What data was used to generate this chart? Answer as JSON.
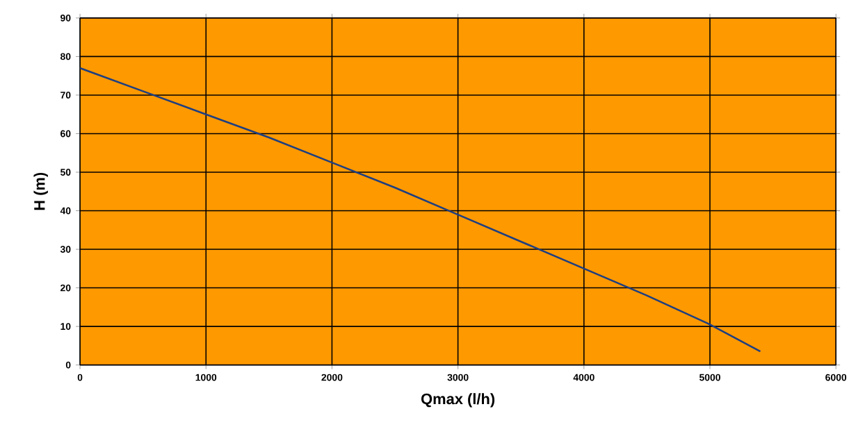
{
  "chart_data": {
    "type": "line",
    "xlabel": "Qmax (l/h)",
    "ylabel": "H (m)",
    "x": [
      0,
      500,
      1000,
      1500,
      2000,
      2500,
      3000,
      3500,
      4000,
      4500,
      5000,
      5400
    ],
    "values": [
      77,
      71,
      65,
      59,
      52.5,
      46,
      39,
      32,
      25,
      18,
      10.5,
      3.5
    ],
    "color": "#1f3f80",
    "xlim": [
      0,
      6000
    ],
    "ylim": [
      0,
      90
    ],
    "xticks": [
      0,
      1000,
      2000,
      3000,
      4000,
      5000,
      6000
    ],
    "yticks": [
      0,
      10,
      20,
      30,
      40,
      50,
      60,
      70,
      80,
      90
    ],
    "grid": true,
    "marker": "none",
    "line_style": "solid"
  }
}
